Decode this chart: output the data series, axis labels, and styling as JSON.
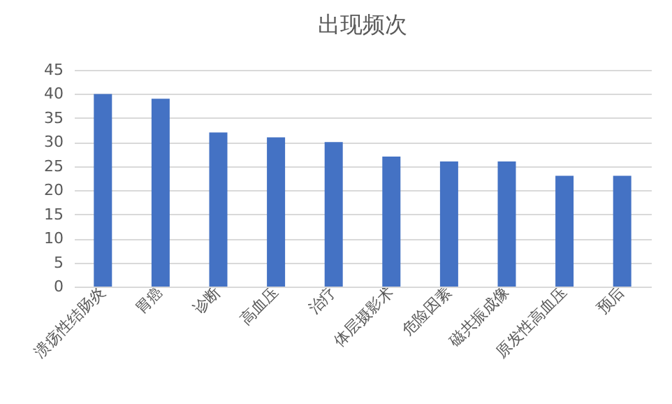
{
  "chart_data": {
    "type": "bar",
    "title": "出现频次",
    "categories": [
      "溃疡性结肠炎",
      "胃癌",
      "诊断",
      "高血压",
      "治疗",
      "体层摄影术",
      "危险因素",
      "磁共振成像",
      "原发性高血压",
      "预后"
    ],
    "values": [
      40,
      39,
      32,
      31,
      30,
      27,
      26,
      26,
      23,
      23
    ],
    "color": "#4472c4",
    "ylim": [
      0,
      45
    ],
    "yticks": [
      0,
      5,
      10,
      15,
      20,
      25,
      30,
      35,
      40,
      45
    ],
    "grid": "y"
  }
}
